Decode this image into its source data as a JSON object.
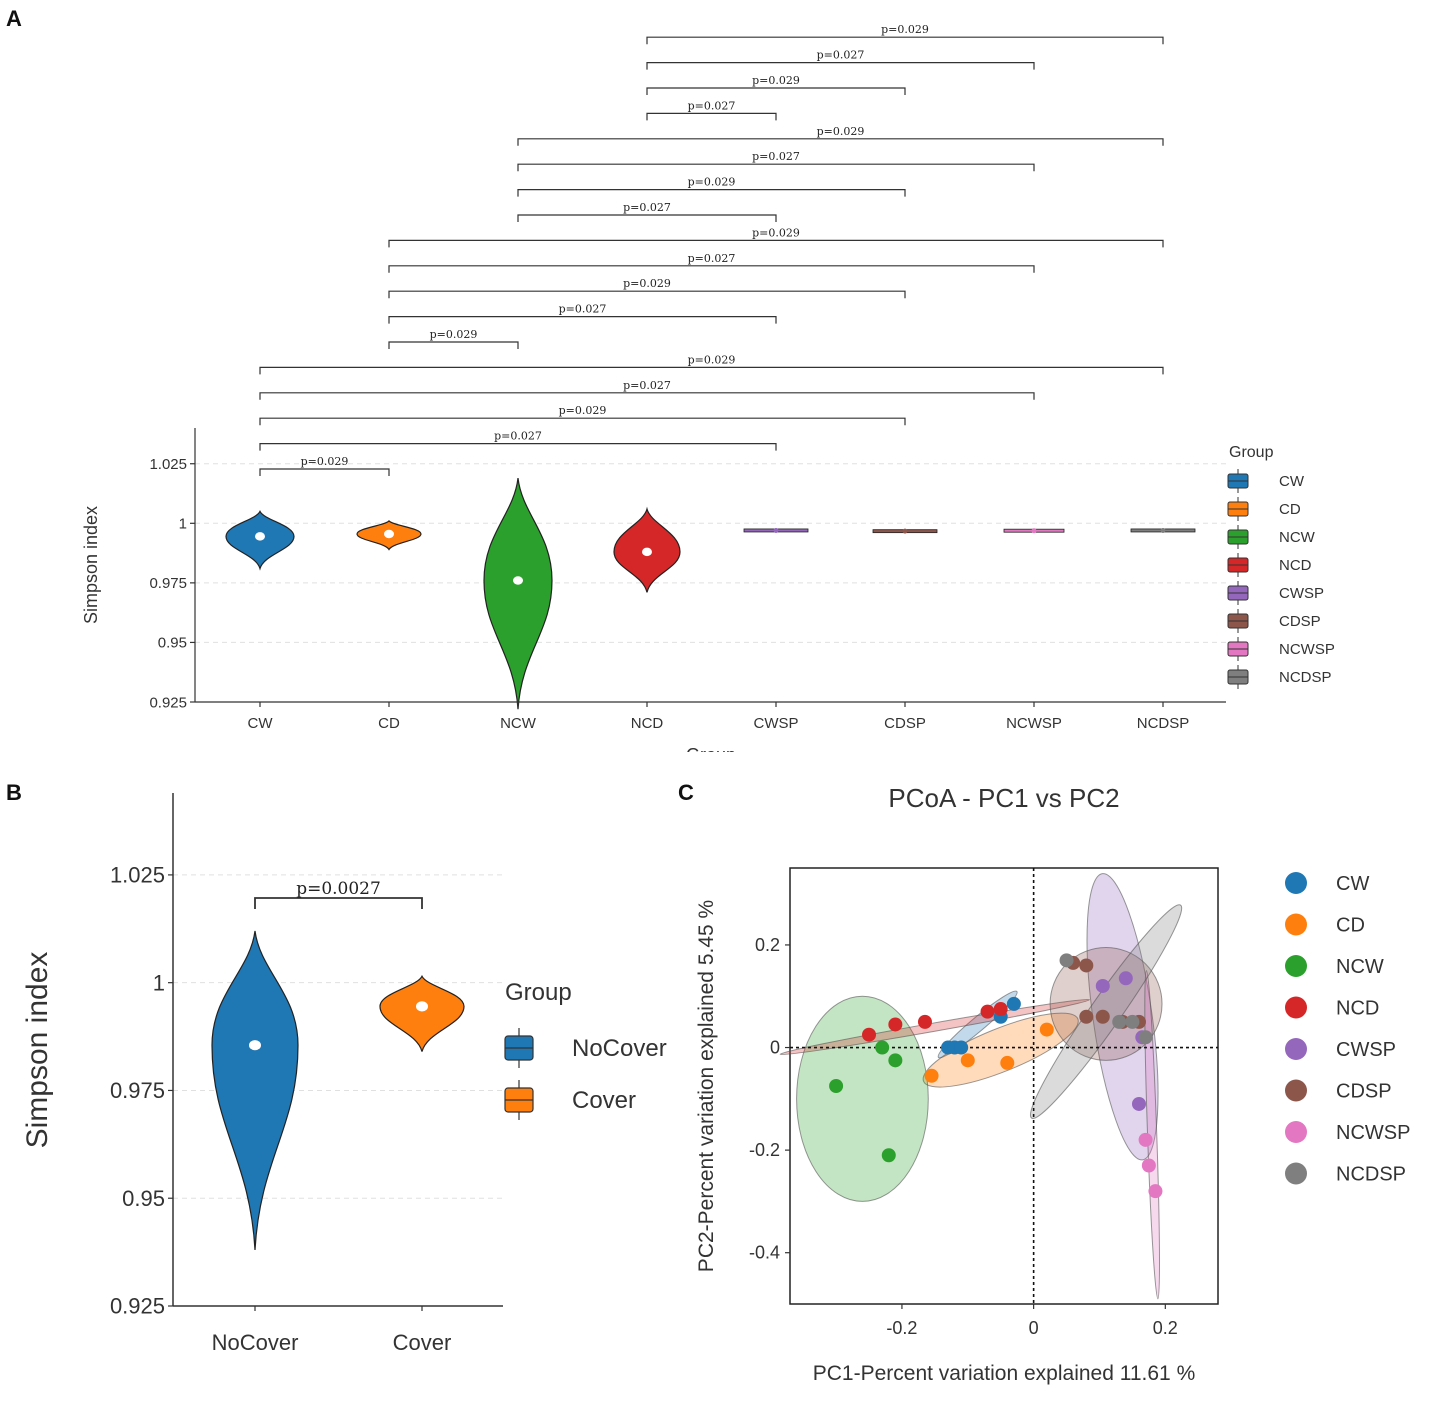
{
  "panel_labels": {
    "a": "A",
    "b": "B",
    "c": "C"
  },
  "colors": {
    "CW": "#1f77b4",
    "CD": "#ff7f0e",
    "NCW": "#2ca02c",
    "NCD": "#d62728",
    "CWSP": "#9467bd",
    "CDSP": "#8c564b",
    "NCWSP": "#e377c2",
    "NCDSP": "#7f7f7f",
    "NoCover": "#1f77b4",
    "Cover": "#ff7f0e"
  },
  "chart_data": [
    {
      "id": "A",
      "type": "violin",
      "title": "",
      "xlabel": "Group",
      "ylabel": "Simpson index",
      "ylim": [
        0.925,
        1.04
      ],
      "yticks": [
        0.925,
        0.95,
        0.975,
        1,
        1.025
      ],
      "ytick_labels": [
        "0.925",
        "0.95",
        "0.975",
        "1",
        "1.025"
      ],
      "categories": [
        "CW",
        "CD",
        "NCW",
        "NCD",
        "CWSP",
        "CDSP",
        "NCWSP",
        "NCDSP"
      ],
      "violins": [
        {
          "group": "CW",
          "min": 0.981,
          "max": 1.005,
          "median": 0.9945
        },
        {
          "group": "CD",
          "min": 0.989,
          "max": 1.001,
          "median": 0.9955
        },
        {
          "group": "NCW",
          "min": 0.922,
          "max": 1.019,
          "median": 0.976
        },
        {
          "group": "NCD",
          "min": 0.971,
          "max": 1.006,
          "median": 0.988
        },
        {
          "group": "CWSP",
          "min": 0.9965,
          "max": 0.9975,
          "median": 0.997
        },
        {
          "group": "CDSP",
          "min": 0.9962,
          "max": 0.9972,
          "median": 0.9967
        },
        {
          "group": "NCWSP",
          "min": 0.9965,
          "max": 0.9973,
          "median": 0.9969
        },
        {
          "group": "NCDSP",
          "min": 0.9966,
          "max": 0.9974,
          "median": 0.997
        }
      ],
      "comparisons": [
        {
          "from": "CW",
          "to": "CD",
          "label": "p=0.029"
        },
        {
          "from": "CW",
          "to": "CWSP",
          "label": "p=0.027"
        },
        {
          "from": "CW",
          "to": "CDSP",
          "label": "p=0.029"
        },
        {
          "from": "CW",
          "to": "NCWSP",
          "label": "p=0.027"
        },
        {
          "from": "CW",
          "to": "NCDSP",
          "label": "p=0.029"
        },
        {
          "from": "CD",
          "to": "NCW",
          "label": "p=0.029"
        },
        {
          "from": "CD",
          "to": "CWSP",
          "label": "p=0.027"
        },
        {
          "from": "CD",
          "to": "CDSP",
          "label": "p=0.029"
        },
        {
          "from": "CD",
          "to": "NCWSP",
          "label": "p=0.027"
        },
        {
          "from": "CD",
          "to": "NCDSP",
          "label": "p=0.029"
        },
        {
          "from": "NCW",
          "to": "CWSP",
          "label": "p=0.027"
        },
        {
          "from": "NCW",
          "to": "CDSP",
          "label": "p=0.029"
        },
        {
          "from": "NCW",
          "to": "NCWSP",
          "label": "p=0.027"
        },
        {
          "from": "NCW",
          "to": "NCDSP",
          "label": "p=0.029"
        },
        {
          "from": "NCD",
          "to": "CWSP",
          "label": "p=0.027"
        },
        {
          "from": "NCD",
          "to": "CDSP",
          "label": "p=0.029"
        },
        {
          "from": "NCD",
          "to": "NCWSP",
          "label": "p=0.027"
        },
        {
          "from": "NCD",
          "to": "NCDSP",
          "label": "p=0.029"
        }
      ],
      "legend": {
        "title": "Group",
        "position": "right",
        "entries": [
          "CW",
          "CD",
          "NCW",
          "NCD",
          "CWSP",
          "CDSP",
          "NCWSP",
          "NCDSP"
        ]
      }
    },
    {
      "id": "B",
      "type": "violin",
      "title": "",
      "xlabel": "",
      "ylabel": "Simpson index",
      "ylim": [
        0.925,
        1.044
      ],
      "yticks": [
        0.925,
        0.95,
        0.975,
        1,
        1.025
      ],
      "ytick_labels": [
        "0.925",
        "0.95",
        "0.975",
        "1",
        "1.025"
      ],
      "categories": [
        "NoCover",
        "Cover"
      ],
      "violins": [
        {
          "group": "NoCover",
          "min": 0.938,
          "max": 1.012,
          "median": 0.9855
        },
        {
          "group": "Cover",
          "min": 0.984,
          "max": 1.0015,
          "median": 0.9945
        }
      ],
      "comparisons": [
        {
          "from": "NoCover",
          "to": "Cover",
          "label": "p=0.0027"
        }
      ],
      "legend": {
        "title": "Group",
        "position": "right",
        "entries": [
          "NoCover",
          "Cover"
        ]
      }
    },
    {
      "id": "C",
      "type": "scatter",
      "title": "PCoA - PC1 vs PC2",
      "xlabel": "PC1-Percent variation explained 11.61 %",
      "ylabel": "PC2-Percent variation explained 5.45 %",
      "xlim": [
        -0.37,
        0.28
      ],
      "ylim": [
        -0.5,
        0.35
      ],
      "xticks": [
        -0.2,
        0,
        0.2
      ],
      "xtick_labels": [
        "-0.2",
        "0",
        "0.2"
      ],
      "yticks": [
        -0.4,
        -0.2,
        0,
        0.2
      ],
      "ytick_labels": [
        "-0.4",
        "-0.2",
        "0",
        "0.2"
      ],
      "reference_lines": {
        "x": 0,
        "y": 0
      },
      "series": [
        {
          "name": "CW",
          "points": [
            [
              -0.13,
              0
            ],
            [
              -0.12,
              0
            ],
            [
              -0.11,
              0
            ],
            [
              -0.05,
              0.06
            ],
            [
              -0.03,
              0.085
            ]
          ],
          "ellipse": {
            "cx": -0.085,
            "cy": 0.045,
            "rx": 0.085,
            "ry": 0.012,
            "angle_deg": 40
          }
        },
        {
          "name": "CD",
          "points": [
            [
              -0.155,
              -0.055
            ],
            [
              -0.1,
              -0.025
            ],
            [
              -0.04,
              -0.03
            ],
            [
              0.02,
              0.035
            ]
          ],
          "ellipse": {
            "cx": -0.05,
            "cy": -0.005,
            "rx": 0.13,
            "ry": 0.04,
            "angle_deg": 22
          }
        },
        {
          "name": "NCW",
          "points": [
            [
              -0.3,
              -0.075
            ],
            [
              -0.23,
              0
            ],
            [
              -0.21,
              -0.025
            ],
            [
              -0.22,
              -0.21
            ]
          ],
          "ellipse": {
            "cx": -0.26,
            "cy": -0.1,
            "rx": 0.1,
            "ry": 0.2,
            "angle_deg": 0
          }
        },
        {
          "name": "NCD",
          "points": [
            [
              -0.25,
              0.025
            ],
            [
              -0.21,
              0.045
            ],
            [
              -0.165,
              0.05
            ],
            [
              -0.07,
              0.07
            ],
            [
              -0.05,
              0.075
            ]
          ],
          "ellipse": {
            "cx": -0.15,
            "cy": 0.04,
            "rx": 0.24,
            "ry": 0.008,
            "angle_deg": 10
          }
        },
        {
          "name": "CWSP",
          "points": [
            [
              0.105,
              0.12
            ],
            [
              0.14,
              0.135
            ],
            [
              0.165,
              0.02
            ],
            [
              0.16,
              -0.11
            ]
          ],
          "ellipse": {
            "cx": 0.135,
            "cy": 0.06,
            "rx": 0.045,
            "ry": 0.28,
            "angle_deg": 8
          }
        },
        {
          "name": "CDSP",
          "points": [
            [
              0.06,
              0.165
            ],
            [
              0.08,
              0.16
            ],
            [
              0.08,
              0.06
            ],
            [
              0.105,
              0.06
            ],
            [
              0.135,
              0.05
            ],
            [
              0.16,
              0.05
            ]
          ],
          "ellipse": {
            "cx": 0.11,
            "cy": 0.085,
            "rx": 0.085,
            "ry": 0.11,
            "angle_deg": 0
          }
        },
        {
          "name": "NCWSP",
          "points": [
            [
              0.17,
              -0.18
            ],
            [
              0.175,
              -0.23
            ],
            [
              0.185,
              -0.28
            ]
          ],
          "ellipse": {
            "cx": 0.18,
            "cy": -0.17,
            "rx": 0.007,
            "ry": 0.32,
            "angle_deg": 2
          }
        },
        {
          "name": "NCDSP",
          "points": [
            [
              0.05,
              0.17
            ],
            [
              0.13,
              0.05
            ],
            [
              0.15,
              0.05
            ],
            [
              0.17,
              0.02
            ]
          ],
          "ellipse": {
            "cx": 0.11,
            "cy": 0.07,
            "rx": 0.23,
            "ry": 0.025,
            "angle_deg": 55
          }
        }
      ],
      "legend": {
        "position": "right",
        "entries": [
          "CW",
          "CD",
          "NCW",
          "NCD",
          "CWSP",
          "CDSP",
          "NCWSP",
          "NCDSP"
        ]
      }
    }
  ]
}
